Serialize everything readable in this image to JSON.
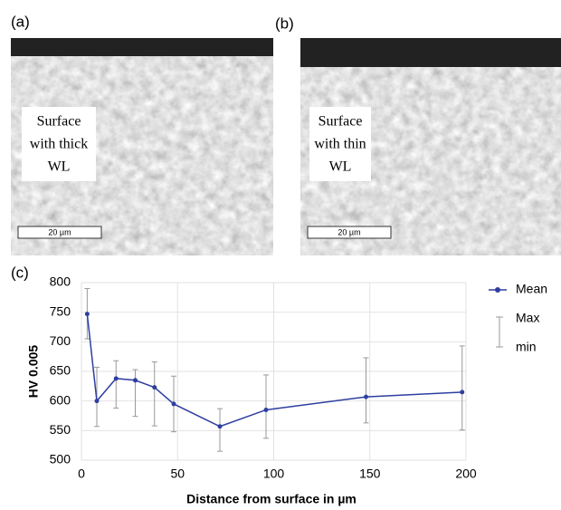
{
  "panels": {
    "a": {
      "label": "(a)",
      "text": [
        "Surface",
        "with thick",
        "WL"
      ],
      "scale": "20 µm"
    },
    "b": {
      "label": "(b)",
      "text": [
        "Surface",
        "with thin",
        "WL"
      ],
      "scale": "20 µm"
    },
    "c": {
      "label": "(c)"
    }
  },
  "chart_data": {
    "type": "line",
    "x_label": "Distance from surface in µm",
    "y_label": "HV 0.005",
    "x": [
      3,
      8,
      18,
      28,
      38,
      48,
      72,
      96,
      148,
      198
    ],
    "series": [
      {
        "name": "Mean",
        "color": "#2e3fa0",
        "values": [
          747,
          600,
          638,
          635,
          623,
          595,
          557,
          585,
          607,
          615
        ]
      }
    ],
    "error_bars": {
      "names": [
        "Max",
        "min"
      ],
      "color": "#999999",
      "max": [
        790,
        657,
        668,
        653,
        666,
        642,
        587,
        644,
        673,
        693
      ],
      "min": [
        705,
        557,
        588,
        574,
        558,
        548,
        515,
        537,
        563,
        551
      ]
    },
    "xlim": [
      0,
      200
    ],
    "xticks": [
      0,
      50,
      100,
      150,
      200
    ],
    "ylim": [
      500,
      800
    ],
    "yticks": [
      500,
      550,
      600,
      650,
      700,
      750,
      800
    ],
    "grid": true
  }
}
